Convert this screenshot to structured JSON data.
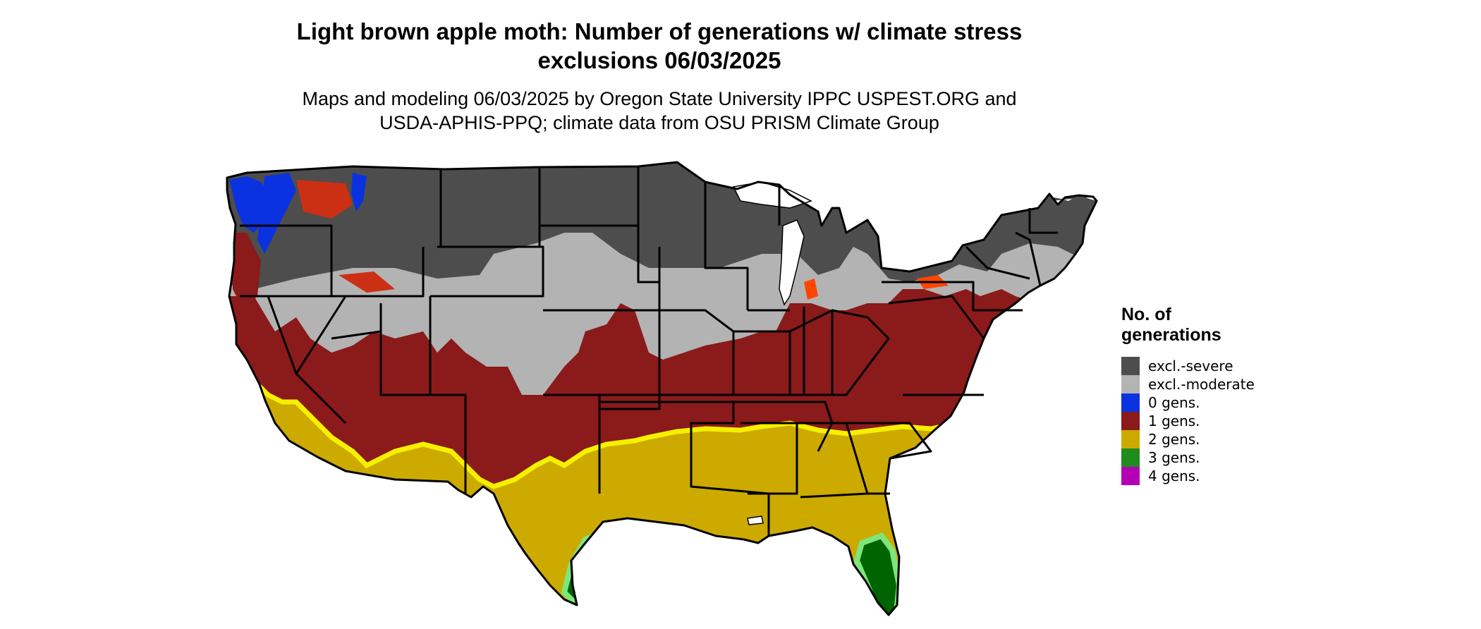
{
  "header": {
    "title_line1": "Light brown apple moth: Number of generations w/ climate stress",
    "title_line2": "exclusions 06/03/2025",
    "subtitle_line1": "Maps and modeling 06/03/2025 by Oregon State University IPPC USPEST.ORG and",
    "subtitle_line2": "USDA-APHIS-PPQ; climate data from OSU PRISM Climate Group"
  },
  "legend": {
    "title_line1": "No. of",
    "title_line2": "generations",
    "items": [
      {
        "label": "excl.-severe",
        "color": "#4d4d4d"
      },
      {
        "label": "excl.-moderate",
        "color": "#b3b3b3"
      },
      {
        "label": "0 gens.",
        "color": "#0a32e0"
      },
      {
        "label": "1 gens.",
        "color": "#8b1a1a"
      },
      {
        "label": "2 gens.",
        "color": "#cdaa00"
      },
      {
        "label": "3 gens.",
        "color": "#1e8c1e"
      },
      {
        "label": "4 gens.",
        "color": "#b400b4"
      }
    ]
  },
  "map_colors": {
    "severe": "#4d4d4d",
    "moderate": "#b3b3b3",
    "zero": "#0a32e0",
    "one": "#8b1a1a",
    "two": "#cdaa00",
    "two_edge": "#f5f000",
    "three": "#006400",
    "three_edge": "#7ce67c",
    "four": "#b400b4",
    "orange": "#ff4500",
    "border": "#000000",
    "lake": "#ffffff"
  }
}
